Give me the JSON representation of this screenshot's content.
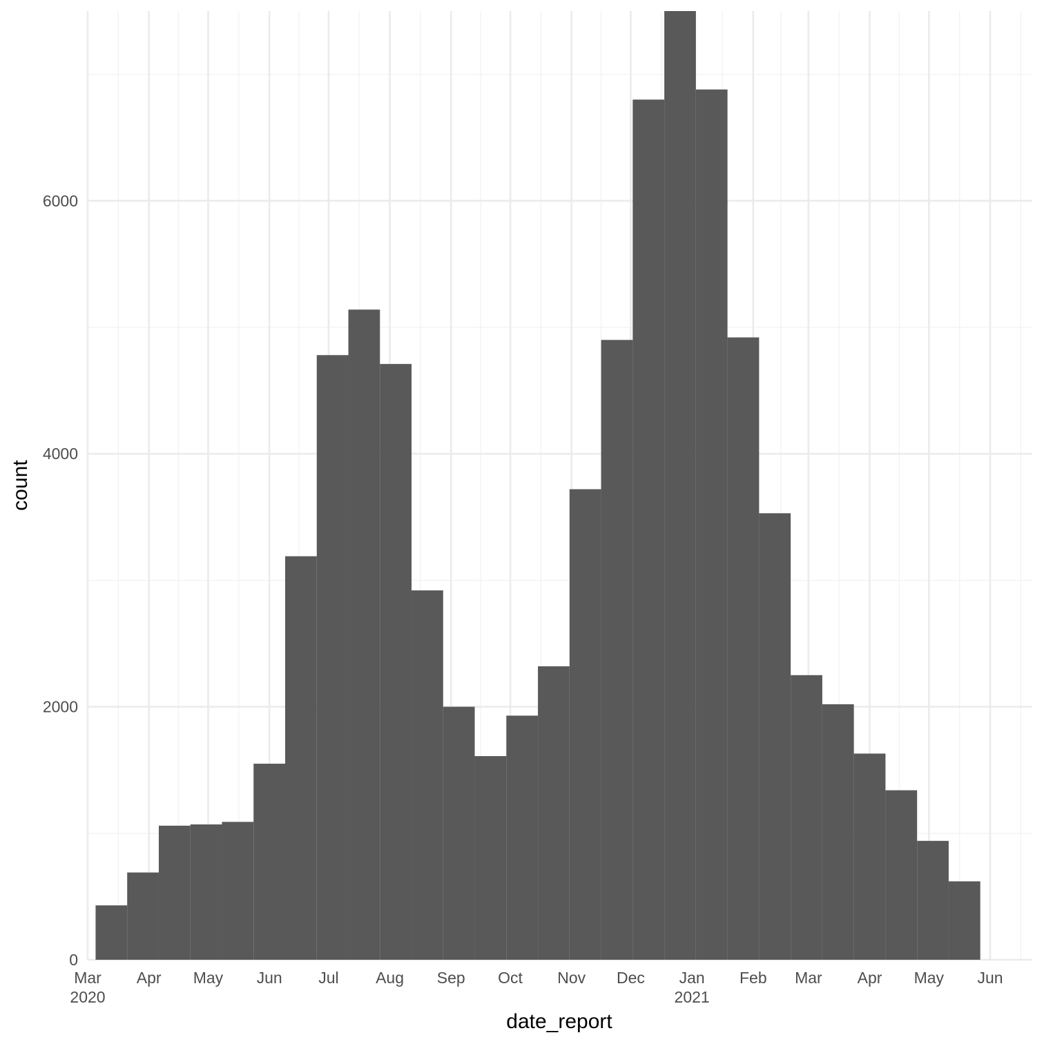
{
  "chart_data": {
    "type": "bar",
    "title": "",
    "xlabel": "date_report",
    "ylabel": "count",
    "ylim": [
      0,
      7500
    ],
    "xlim": [
      "2020-03-01",
      "2021-06-26"
    ],
    "grid": true,
    "y_ticks": [
      0,
      2000,
      4000,
      6000
    ],
    "y_tick_labels": [
      "0",
      "2000",
      "4000",
      "6000"
    ],
    "x_ticks": [
      {
        "date": "2020-03-01",
        "label": "Mar",
        "sub": "2020"
      },
      {
        "date": "2020-04-01",
        "label": "Apr",
        "sub": ""
      },
      {
        "date": "2020-05-01",
        "label": "May",
        "sub": ""
      },
      {
        "date": "2020-06-01",
        "label": "Jun",
        "sub": ""
      },
      {
        "date": "2020-07-01",
        "label": "Jul",
        "sub": ""
      },
      {
        "date": "2020-08-01",
        "label": "Aug",
        "sub": ""
      },
      {
        "date": "2020-09-01",
        "label": "Sep",
        "sub": ""
      },
      {
        "date": "2020-10-01",
        "label": "Oct",
        "sub": ""
      },
      {
        "date": "2020-11-01",
        "label": "Nov",
        "sub": ""
      },
      {
        "date": "2020-12-01",
        "label": "Dec",
        "sub": ""
      },
      {
        "date": "2021-01-01",
        "label": "Jan",
        "sub": "2021"
      },
      {
        "date": "2021-02-01",
        "label": "Feb",
        "sub": ""
      },
      {
        "date": "2021-03-01",
        "label": "Mar",
        "sub": ""
      },
      {
        "date": "2021-04-01",
        "label": "Apr",
        "sub": ""
      },
      {
        "date": "2021-05-01",
        "label": "May",
        "sub": ""
      },
      {
        "date": "2021-06-01",
        "label": "Jun",
        "sub": ""
      }
    ],
    "bins": [
      {
        "start": "2020-03-05",
        "end": "2020-03-21",
        "count": 430
      },
      {
        "start": "2020-03-21",
        "end": "2020-04-06",
        "count": 690
      },
      {
        "start": "2020-04-06",
        "end": "2020-04-22",
        "count": 1060
      },
      {
        "start": "2020-04-22",
        "end": "2020-05-08",
        "count": 1070
      },
      {
        "start": "2020-05-08",
        "end": "2020-05-24",
        "count": 1090
      },
      {
        "start": "2020-05-24",
        "end": "2020-06-09",
        "count": 1550
      },
      {
        "start": "2020-06-09",
        "end": "2020-06-25",
        "count": 3190
      },
      {
        "start": "2020-06-25",
        "end": "2020-07-11",
        "count": 4780
      },
      {
        "start": "2020-07-11",
        "end": "2020-07-27",
        "count": 5140
      },
      {
        "start": "2020-07-27",
        "end": "2020-08-12",
        "count": 4710
      },
      {
        "start": "2020-08-12",
        "end": "2020-08-28",
        "count": 2920
      },
      {
        "start": "2020-08-28",
        "end": "2020-09-13",
        "count": 2000
      },
      {
        "start": "2020-09-13",
        "end": "2020-09-29",
        "count": 1610
      },
      {
        "start": "2020-09-29",
        "end": "2020-10-15",
        "count": 1930
      },
      {
        "start": "2020-10-15",
        "end": "2020-10-31",
        "count": 2320
      },
      {
        "start": "2020-10-31",
        "end": "2020-11-16",
        "count": 3720
      },
      {
        "start": "2020-11-16",
        "end": "2020-12-02",
        "count": 4900
      },
      {
        "start": "2020-12-02",
        "end": "2020-12-18",
        "count": 6800
      },
      {
        "start": "2020-12-18",
        "end": "2021-01-03",
        "count": 7500
      },
      {
        "start": "2021-01-03",
        "end": "2021-01-19",
        "count": 6880
      },
      {
        "start": "2021-01-19",
        "end": "2021-02-04",
        "count": 4920
      },
      {
        "start": "2021-02-04",
        "end": "2021-02-20",
        "count": 3530
      },
      {
        "start": "2021-02-20",
        "end": "2021-03-08",
        "count": 2250
      },
      {
        "start": "2021-03-08",
        "end": "2021-03-24",
        "count": 2020
      },
      {
        "start": "2021-03-24",
        "end": "2021-04-09",
        "count": 1630
      },
      {
        "start": "2021-04-09",
        "end": "2021-04-25",
        "count": 1340
      },
      {
        "start": "2021-04-25",
        "end": "2021-05-11",
        "count": 940
      },
      {
        "start": "2021-05-11",
        "end": "2021-05-27",
        "count": 620
      }
    ],
    "colors": {
      "bar": "#595959",
      "grid_major": "#ebebeb",
      "grid_minor": "#f2f2f2",
      "tick_text": "#4d4d4d",
      "title_text": "#000000"
    }
  }
}
